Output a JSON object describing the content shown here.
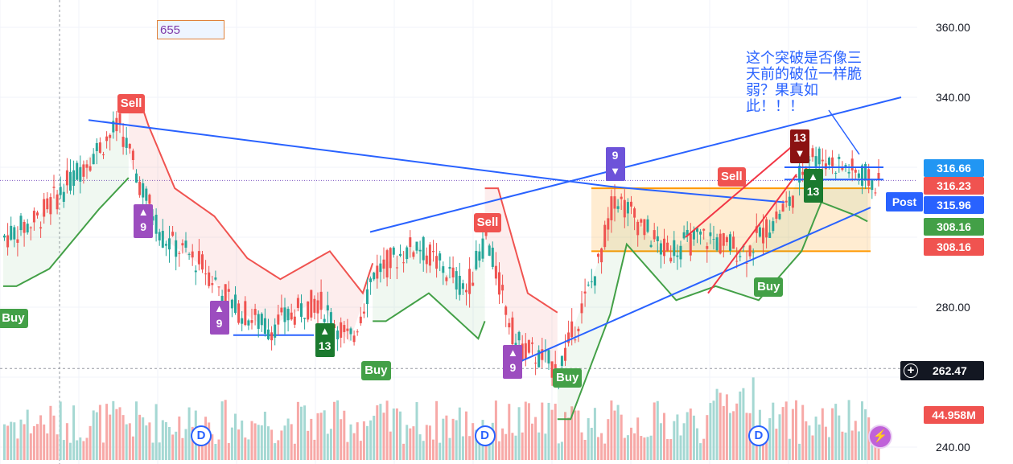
{
  "chart_data": {
    "type": "candlestick",
    "y_axis": {
      "ticks": [
        360,
        340,
        280,
        240
      ],
      "tick_labels": [
        "360.00",
        "340.00",
        "280.00",
        "240.00"
      ],
      "range": [
        237,
        365
      ]
    },
    "price_tags": {
      "high": {
        "value": "316.66",
        "color": "#2196f3"
      },
      "close": {
        "value": "316.23",
        "color": "#f05350"
      },
      "post": {
        "label": "Post",
        "value": "315.96",
        "color": "#2962ff"
      },
      "supertrend_up": {
        "value": "308.16",
        "color": "#43a047"
      },
      "supertrend_down": {
        "value": "308.16",
        "color": "#f05350"
      },
      "crosshair": {
        "value": "262.47"
      },
      "volume": {
        "value": "44.958M",
        "color": "#f05350"
      }
    },
    "annotation_box": "655",
    "note": "这个突破是否像三天前的破位一样脆弱？果真如此！！！",
    "signals": [
      {
        "kind": "buy",
        "label": "Buy",
        "bar": 2,
        "price": 281
      },
      {
        "kind": "sell",
        "label": "Sell",
        "bar": 38,
        "price": 334
      },
      {
        "kind": "buy",
        "label": "Buy",
        "bar": 112,
        "price": 266
      },
      {
        "kind": "sell",
        "label": "Sell",
        "bar": 146,
        "price": 300
      },
      {
        "kind": "buy",
        "label": "Buy",
        "bar": 170,
        "price": 264
      },
      {
        "kind": "sell",
        "label": "Sell",
        "bar": 220,
        "price": 313
      },
      {
        "kind": "buy",
        "label": "Buy",
        "bar": 231,
        "price": 290
      }
    ],
    "td_counts": [
      {
        "num": "9",
        "dir": "up",
        "bar": 42,
        "color": "#9c4dbf"
      },
      {
        "num": "9",
        "dir": "up",
        "bar": 65,
        "color": "#9c4dbf"
      },
      {
        "num": "13",
        "dir": "up",
        "bar": 97,
        "color": "#1b7a2f"
      },
      {
        "num": "9",
        "dir": "up",
        "bar": 154,
        "color": "#9c4dbf"
      },
      {
        "num": "9",
        "dir": "down",
        "bar": 185,
        "color": "#6d53d9"
      },
      {
        "num": "13",
        "dir": "down",
        "bar": 241,
        "color": "#8b1212"
      },
      {
        "num": "13",
        "dir": "up",
        "bar": 245,
        "color": "#1b7a2f"
      }
    ],
    "dividends": [
      {
        "label": "D",
        "bar": 60
      },
      {
        "label": "D",
        "bar": 146
      },
      {
        "label": "D",
        "bar": 229
      }
    ],
    "candle_colors": {
      "up": "#26a69a",
      "down": "#ef5350"
    }
  }
}
